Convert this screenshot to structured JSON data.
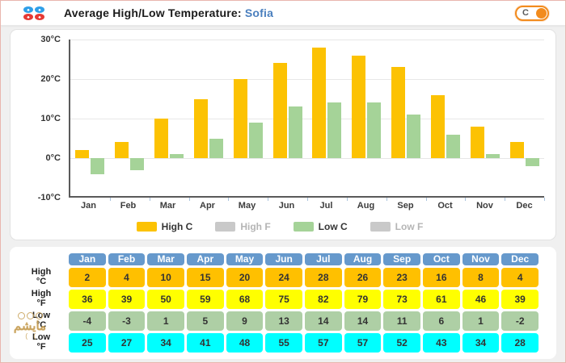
{
  "header": {
    "title": "Average High/Low Temperature:",
    "city": "Sofia",
    "unit_toggle": {
      "label": "C",
      "state": "C",
      "accent_color": "#f28b1d"
    }
  },
  "chart_data": {
    "type": "bar",
    "title": "Average High/Low Temperature: Sofia",
    "categories": [
      "Jan",
      "Feb",
      "Mar",
      "Apr",
      "May",
      "Jun",
      "Jul",
      "Aug",
      "Sep",
      "Oct",
      "Nov",
      "Dec"
    ],
    "series": [
      {
        "name": "High C",
        "color": "#fcc203",
        "enabled": true,
        "values": [
          2,
          4,
          10,
          15,
          20,
          24,
          28,
          26,
          23,
          16,
          8,
          4
        ]
      },
      {
        "name": "High F",
        "color": "#c9c9c9",
        "enabled": false,
        "values": [
          36,
          39,
          50,
          59,
          68,
          75,
          82,
          79,
          73,
          61,
          46,
          39
        ]
      },
      {
        "name": "Low C",
        "color": "#a5d398",
        "enabled": true,
        "values": [
          -4,
          -3,
          1,
          5,
          9,
          13,
          14,
          14,
          11,
          6,
          1,
          -2
        ]
      },
      {
        "name": "Low F",
        "color": "#c9c9c9",
        "enabled": false,
        "values": [
          25,
          27,
          34,
          41,
          48,
          55,
          57,
          57,
          52,
          43,
          34,
          28
        ]
      }
    ],
    "ylim": [
      -10,
      30
    ],
    "yticks": [
      30,
      20,
      10,
      0,
      -10
    ],
    "ytick_labels": [
      "30°C",
      "20°C",
      "10°C",
      "0°C",
      "-10°C"
    ],
    "grid": true,
    "legend_position": "bottom",
    "muted_swatch_color": "#c9c9c9"
  },
  "table": {
    "header_color": "#6699cc",
    "columns": [
      "Jan",
      "Feb",
      "Mar",
      "Apr",
      "May",
      "Jun",
      "Jul",
      "Aug",
      "Sep",
      "Oct",
      "Nov",
      "Dec"
    ],
    "rows": [
      {
        "label": [
          "High",
          "°C"
        ],
        "color": "#ffc000",
        "values": [
          2,
          4,
          10,
          15,
          20,
          24,
          28,
          26,
          23,
          16,
          8,
          4
        ]
      },
      {
        "label": [
          "High",
          "°F"
        ],
        "color": "#ffff00",
        "values": [
          36,
          39,
          50,
          59,
          68,
          75,
          82,
          79,
          73,
          61,
          46,
          39
        ]
      },
      {
        "label": [
          "Low",
          "°C"
        ],
        "color": "#aecfa5",
        "values": [
          -4,
          -3,
          1,
          5,
          9,
          13,
          14,
          14,
          11,
          6,
          1,
          -2
        ]
      },
      {
        "label": [
          "Low",
          "°F"
        ],
        "color": "#00ffff",
        "values": [
          25,
          27,
          34,
          41,
          48,
          55,
          57,
          57,
          52,
          43,
          34,
          28
        ]
      }
    ]
  },
  "watermark": {
    "text": "مايشم"
  }
}
